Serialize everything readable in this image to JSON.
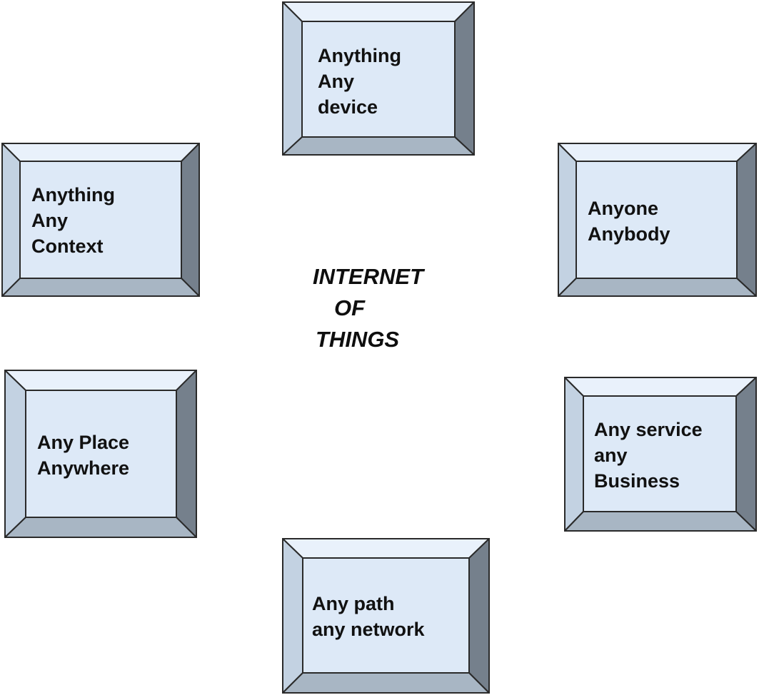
{
  "title": {
    "line1": "INTERNET",
    "line2": "OF",
    "line3": "THINGS"
  },
  "blocks": [
    {
      "id": "device",
      "lines": [
        "Anything",
        "Any",
        "device"
      ]
    },
    {
      "id": "context",
      "lines": [
        "Anything",
        "Any",
        "Context"
      ]
    },
    {
      "id": "anyone",
      "lines": [
        "Anyone",
        "Anybody"
      ]
    },
    {
      "id": "place",
      "lines": [
        "Any Place",
        "Anywhere"
      ]
    },
    {
      "id": "service",
      "lines": [
        "Any service",
        "any",
        "Business"
      ]
    },
    {
      "id": "path",
      "lines": [
        "Any path",
        "any network"
      ]
    }
  ],
  "colors": {
    "face": "#dde9f7",
    "top_bevel": "#e9f1fb",
    "left_bevel": "#c3d2e2",
    "right_bevel": "#75808c",
    "bottom_bevel": "#a8b6c4",
    "outline": "#2a2a2a"
  }
}
